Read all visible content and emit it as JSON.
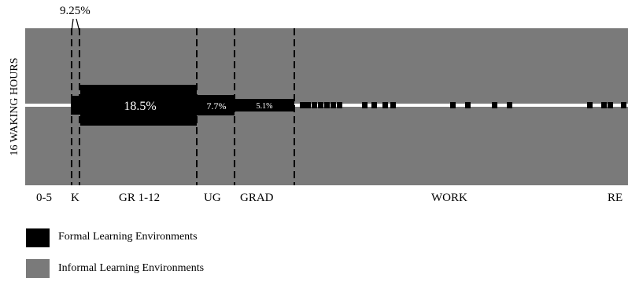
{
  "annotation_top": "9.25%",
  "y_axis_label": "16 WAKING HOURS",
  "stages": [
    {
      "label": "0-5"
    },
    {
      "label": "K"
    },
    {
      "label": "GR 1-12"
    },
    {
      "label": "UG"
    },
    {
      "label": "GRAD"
    },
    {
      "label": "WORK"
    },
    {
      "label": "RE"
    }
  ],
  "bar_labels": {
    "gr": "18.5%",
    "ug": "7.7%",
    "grad": "5.1%"
  },
  "legend": [
    {
      "label": "Formal  Learning Environments",
      "color": "#000000"
    },
    {
      "label": "Informal  Learning Environments",
      "color": "#7a7a7a"
    }
  ],
  "colors": {
    "informal": "#7a7a7a",
    "formal": "#000000",
    "timeline": "#ffffff"
  }
}
